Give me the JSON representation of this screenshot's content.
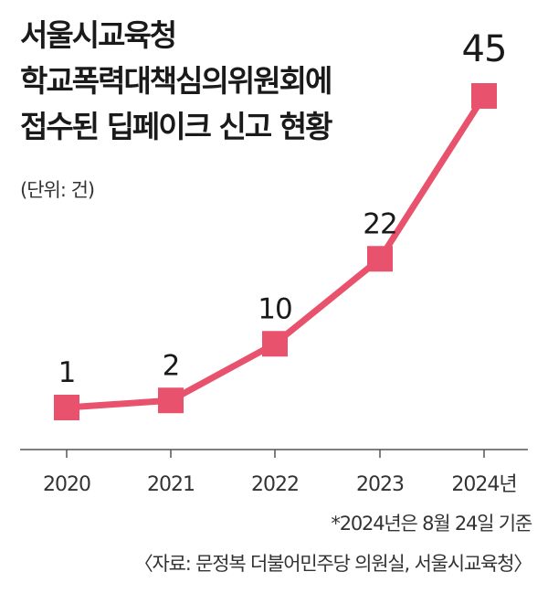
{
  "title_lines": [
    "서울시교육청",
    "학교폭력대책심의위원회에",
    "접수된 딥페이크 신고 현황"
  ],
  "unit": "(단위: 건)",
  "notes": {
    "asterisk": "*2024년은 8월 24일 기준",
    "source": "〈자료: 문정복 더불어민주당 의원실, 서울시교육청〉"
  },
  "colors": {
    "series": "#e8526d",
    "axis": "#555555",
    "text": "#1a1a1a"
  },
  "chart_data": {
    "type": "line",
    "title": "서울시교육청 학교폭력대책심의위원회에 접수된 딥페이크 신고 현황",
    "x": [
      "2020",
      "2021",
      "2022",
      "2023",
      "2024년"
    ],
    "series": [
      {
        "values": [
          1,
          2,
          10,
          22,
          45
        ]
      }
    ],
    "ylim": [
      0,
      45
    ],
    "grid": false,
    "data_labels": true,
    "marker": "square"
  }
}
